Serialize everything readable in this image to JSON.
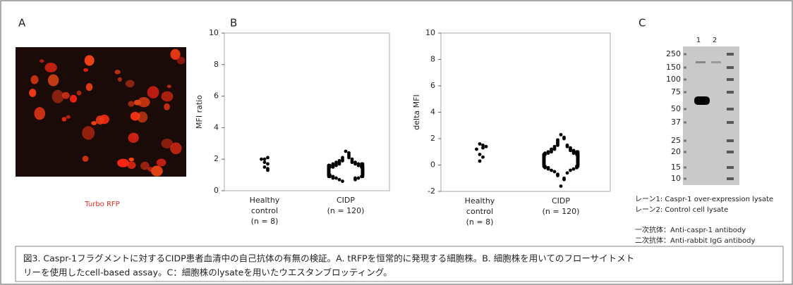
{
  "panel_a": {
    "label": "A",
    "caption": "Turbo RFP"
  },
  "chart_data": [
    {
      "type": "dot",
      "label": "B",
      "ylabel": "MFI ratio",
      "categories": [
        [
          "Healthy",
          "control",
          "(n = 8)"
        ],
        [
          "CIDP",
          "(n = 120)"
        ]
      ],
      "color": "#000000",
      "values": [
        [
          2.0,
          2.1,
          2.0,
          1.8,
          1.7,
          1.5,
          1.4,
          1.3
        ],
        [
          2.5,
          2.4,
          2.3,
          2.2,
          2.1,
          2.1,
          2.0,
          2.0,
          1.9,
          1.9,
          1.9,
          1.8,
          1.8,
          1.8,
          1.8,
          1.7,
          1.7,
          1.7,
          1.7,
          1.7,
          1.7,
          1.6,
          1.6,
          1.6,
          1.6,
          1.6,
          1.6,
          1.6,
          1.6,
          1.5,
          1.5,
          1.5,
          1.5,
          1.5,
          1.5,
          1.5,
          1.5,
          1.5,
          1.5,
          1.5,
          1.5,
          1.4,
          1.4,
          1.4,
          1.4,
          1.4,
          1.4,
          1.4,
          1.4,
          1.4,
          1.4,
          1.4,
          1.4,
          1.4,
          1.3,
          1.3,
          1.3,
          1.3,
          1.3,
          1.3,
          1.3,
          1.3,
          1.3,
          1.3,
          1.3,
          1.3,
          1.3,
          1.2,
          1.2,
          1.2,
          1.2,
          1.2,
          1.2,
          1.2,
          1.2,
          1.2,
          1.2,
          1.2,
          1.2,
          1.2,
          1.1,
          1.1,
          1.1,
          1.1,
          1.1,
          1.1,
          1.1,
          1.1,
          1.1,
          1.1,
          1.0,
          1.0,
          1.0,
          1.0,
          1.0,
          1.0,
          1.0,
          1.0,
          0.9,
          0.9,
          0.9,
          0.9,
          0.9,
          0.8,
          0.8,
          0.8,
          0.8,
          0.7,
          0.7,
          0.6,
          1.6,
          1.5,
          1.4,
          1.3,
          1.2,
          1.7,
          1.5,
          1.4,
          1.3,
          1.6
        ]
      ],
      "ylim": [
        0,
        10
      ],
      "yticks": [
        0,
        2,
        4,
        6,
        8,
        10
      ]
    },
    {
      "type": "dot",
      "ylabel": "delta MFI",
      "categories": [
        [
          "Healthy",
          "control",
          "(n = 8)"
        ],
        [
          "CIDP",
          "(n = 120)"
        ]
      ],
      "color": "#000000",
      "values": [
        [
          1.6,
          1.5,
          1.3,
          1.4,
          1.2,
          0.8,
          0.6,
          0.3
        ],
        [
          2.3,
          2.1,
          2.0,
          1.9,
          1.8,
          1.7,
          1.6,
          1.5,
          1.5,
          1.4,
          1.4,
          1.3,
          1.3,
          1.2,
          1.2,
          1.2,
          1.1,
          1.1,
          1.1,
          1.0,
          1.0,
          1.0,
          1.0,
          0.9,
          0.9,
          0.9,
          0.9,
          0.9,
          0.8,
          0.8,
          0.8,
          0.8,
          0.8,
          0.8,
          0.7,
          0.7,
          0.7,
          0.7,
          0.7,
          0.7,
          0.7,
          0.6,
          0.6,
          0.6,
          0.6,
          0.6,
          0.6,
          0.6,
          0.6,
          0.5,
          0.5,
          0.5,
          0.5,
          0.5,
          0.5,
          0.5,
          0.5,
          0.4,
          0.4,
          0.4,
          0.4,
          0.4,
          0.4,
          0.4,
          0.4,
          0.3,
          0.3,
          0.3,
          0.3,
          0.3,
          0.3,
          0.3,
          0.2,
          0.2,
          0.2,
          0.2,
          0.2,
          0.2,
          0.1,
          0.1,
          0.1,
          0.1,
          0.1,
          0.0,
          0.0,
          0.0,
          0.0,
          -0.1,
          -0.1,
          -0.1,
          -0.1,
          -0.2,
          -0.2,
          -0.2,
          -0.3,
          -0.3,
          -0.4,
          -0.4,
          -0.5,
          -0.6,
          -0.7,
          -0.8,
          -1.0,
          -1.1,
          -1.6,
          0.5,
          0.6,
          0.7,
          0.8,
          0.4,
          0.3,
          0.5,
          0.6,
          0.2,
          0.9,
          1.0,
          0.4,
          0.1,
          0.6,
          0.7
        ]
      ],
      "ylim": [
        -2,
        10
      ],
      "yticks": [
        -2,
        0,
        2,
        4,
        6,
        8,
        10
      ]
    }
  ],
  "panel_c": {
    "label": "C",
    "lanes": [
      "1",
      "2"
    ],
    "markers": [
      250,
      150,
      100,
      75,
      50,
      37,
      25,
      20,
      15,
      10
    ],
    "legend": [
      "レーン1: Caspr-1 over-expression lysate",
      "レーン2: Control cell lysate",
      "一次抗体：Anti-caspr-1 antibody",
      "二次抗体：Anti-rabbit IgG antibody"
    ]
  },
  "caption": [
    "図3. Caspr-1フラグメントに対するCIDP患者血清中の自己抗体の有無の検証。A. tRFPを恒常的に発現する細胞株。B. 細胞株を用いてのフローサイトメト",
    "リーを使用したcell-based assay。C：細胞株のlysateを用いたウエスタンブロッティング。"
  ]
}
